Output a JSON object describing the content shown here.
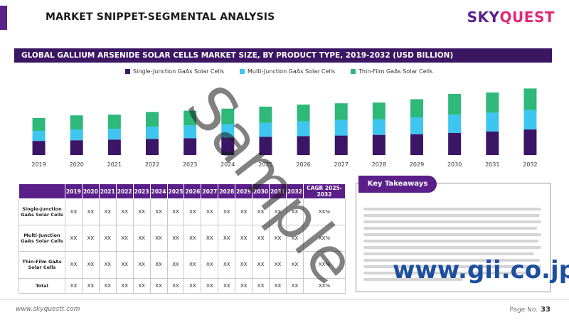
{
  "page_title": "MARKET SNIPPET-SEGMENTAL ANALYSIS",
  "logo": {
    "part1": "SKY",
    "part2": "QUEST"
  },
  "chart_data": {
    "type": "bar",
    "stacked": true,
    "title": "GLOBAL GALLIUM ARSENIDE SOLAR CELLS MARKET SIZE, BY PRODUCT TYPE, 2019-2032 (USD BILLION)",
    "categories": [
      "2019",
      "2020",
      "2021",
      "2022",
      "2023",
      "2024",
      "2025",
      "2026",
      "2027",
      "2028",
      "2029",
      "2030",
      "2031",
      "2032"
    ],
    "series": [
      {
        "name": "Single-Junction GaAs Solar Cells",
        "color": "#3b1566",
        "values": [
          21,
          22,
          23,
          24,
          25,
          26,
          27,
          28,
          29,
          30,
          31,
          33,
          35,
          38
        ]
      },
      {
        "name": "Multi-Junction GaAs Solar Cells",
        "color": "#3ec6f0",
        "values": [
          15,
          16,
          16,
          18,
          19,
          20,
          21,
          22,
          23,
          23,
          25,
          27,
          28,
          29
        ]
      },
      {
        "name": "Thin-Film GaAs Solar Cells",
        "color": "#2eb87a",
        "values": [
          19,
          21,
          21,
          22,
          22,
          23,
          24,
          25,
          25,
          25,
          27,
          31,
          30,
          32
        ]
      }
    ],
    "ylim": [
      0,
      110
    ],
    "grid": false,
    "legend": "top"
  },
  "table": {
    "headers": [
      "",
      "2019",
      "2020",
      "2021",
      "2022",
      "2023",
      "2024",
      "2025",
      "2026",
      "2027",
      "2028",
      "2029",
      "2030",
      "2031",
      "2032",
      "CAGR 2025-2032"
    ],
    "rows": [
      {
        "label": "Single-Junction GaAs Solar Cells",
        "cells": [
          "XX",
          "XX",
          "XX",
          "XX",
          "XX",
          "XX",
          "XX",
          "XX",
          "XX",
          "XX",
          "XX",
          "XX",
          "XX",
          "XX",
          "XX%"
        ]
      },
      {
        "label": "Multi-Junction GaAs Solar Cells",
        "cells": [
          "XX",
          "XX",
          "XX",
          "XX",
          "XX",
          "XX",
          "XX",
          "XX",
          "XX",
          "XX",
          "XX",
          "XX",
          "XX",
          "XX",
          "XX%"
        ]
      },
      {
        "label": "Thin-Film GaAs Solar Cells",
        "cells": [
          "XX",
          "XX",
          "XX",
          "XX",
          "XX",
          "XX",
          "XX",
          "XX",
          "XX",
          "XX",
          "XX",
          "XX",
          "XX",
          "XX",
          "XX%"
        ]
      },
      {
        "label": "Total",
        "cells": [
          "XX",
          "XX",
          "XX",
          "XX",
          "XX",
          "XX",
          "XX",
          "XX",
          "XX",
          "XX",
          "XX",
          "XX",
          "XX",
          "XX",
          "XX%"
        ]
      }
    ]
  },
  "takeaways": {
    "title": "Key Takeaways"
  },
  "watermark": "Sample",
  "gii_watermark": "www.gii.co.jp",
  "footer": {
    "url": "www.skyquestt.com",
    "page_label": "Page No.",
    "page_number": "33"
  }
}
